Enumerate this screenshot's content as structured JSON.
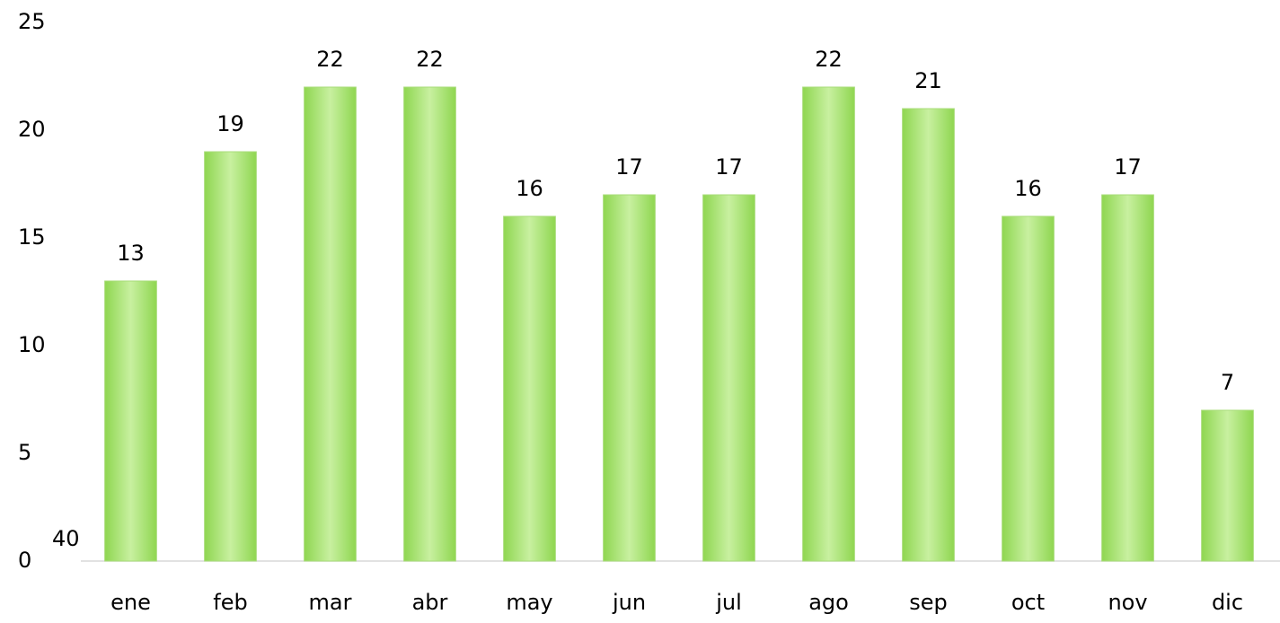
{
  "chart_data": {
    "type": "bar",
    "categories": [
      "ene",
      "feb",
      "mar",
      "abr",
      "may",
      "jun",
      "jul",
      "ago",
      "sep",
      "oct",
      "nov",
      "dic"
    ],
    "values": [
      13,
      19,
      22,
      22,
      16,
      17,
      17,
      22,
      21,
      16,
      17,
      7
    ],
    "color": "#8fd650",
    "ylim": [
      0,
      25
    ],
    "yticks": [
      0,
      5,
      10,
      15,
      20,
      25
    ],
    "grid": false,
    "annotation": "40"
  }
}
